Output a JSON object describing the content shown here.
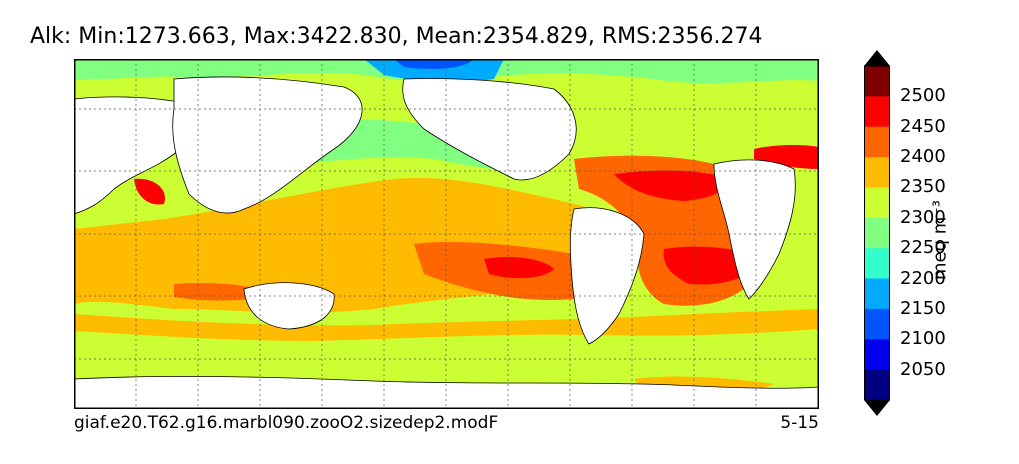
{
  "title": "Alk: Min:1273.663, Max:3422.830, Mean:2354.829, RMS:2356.274",
  "footer": {
    "case_name": "giaf.e20.T62.g16.marbl090.zooO2.sizedep2.modF",
    "depth": "5-15"
  },
  "colorbar": {
    "units": "meq m⁻³",
    "tick_labels": [
      "2500",
      "2450",
      "2400",
      "2350",
      "2300",
      "2250",
      "2200",
      "2150",
      "2100",
      "2050"
    ],
    "levels_colors": [
      "#7f0000",
      "#ff0000",
      "#ff6600",
      "#ffbb00",
      "#ccff33",
      "#80ff80",
      "#33ffcc",
      "#00aaff",
      "#0055ff",
      "#0000ee",
      "#000080"
    ],
    "extend": "both"
  },
  "map": {
    "projection": "cylindrical",
    "grid": "dotted",
    "land_color": "#ffffff",
    "background_field_color": "#ccff33"
  }
}
